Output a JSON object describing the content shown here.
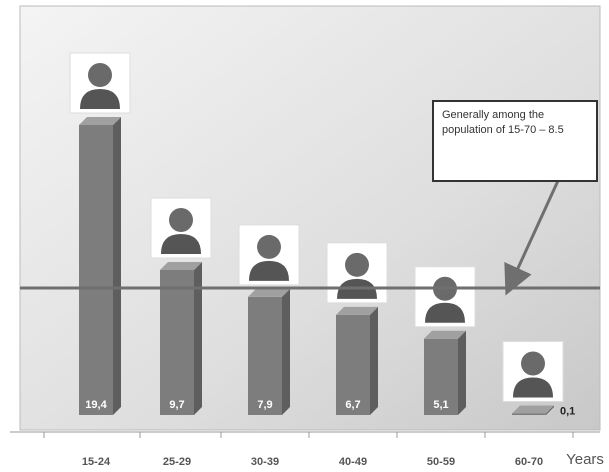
{
  "chart_data": {
    "type": "bar",
    "x_label": "Years",
    "categories": [
      "15-24",
      "25-29",
      "30-39",
      "40-49",
      "50-59",
      "60-70"
    ],
    "values": [
      19.4,
      9.7,
      7.9,
      6.7,
      5.1,
      0.1
    ],
    "value_labels": [
      "19,4",
      "9,7",
      "7,9",
      "6,7",
      "5,1",
      "0,1"
    ],
    "color": "#7d7d7d",
    "reference_line": {
      "value": 8.5,
      "label": "Generally among the population of 15-70 – 8.5",
      "color": "#6f6f6f"
    }
  }
}
